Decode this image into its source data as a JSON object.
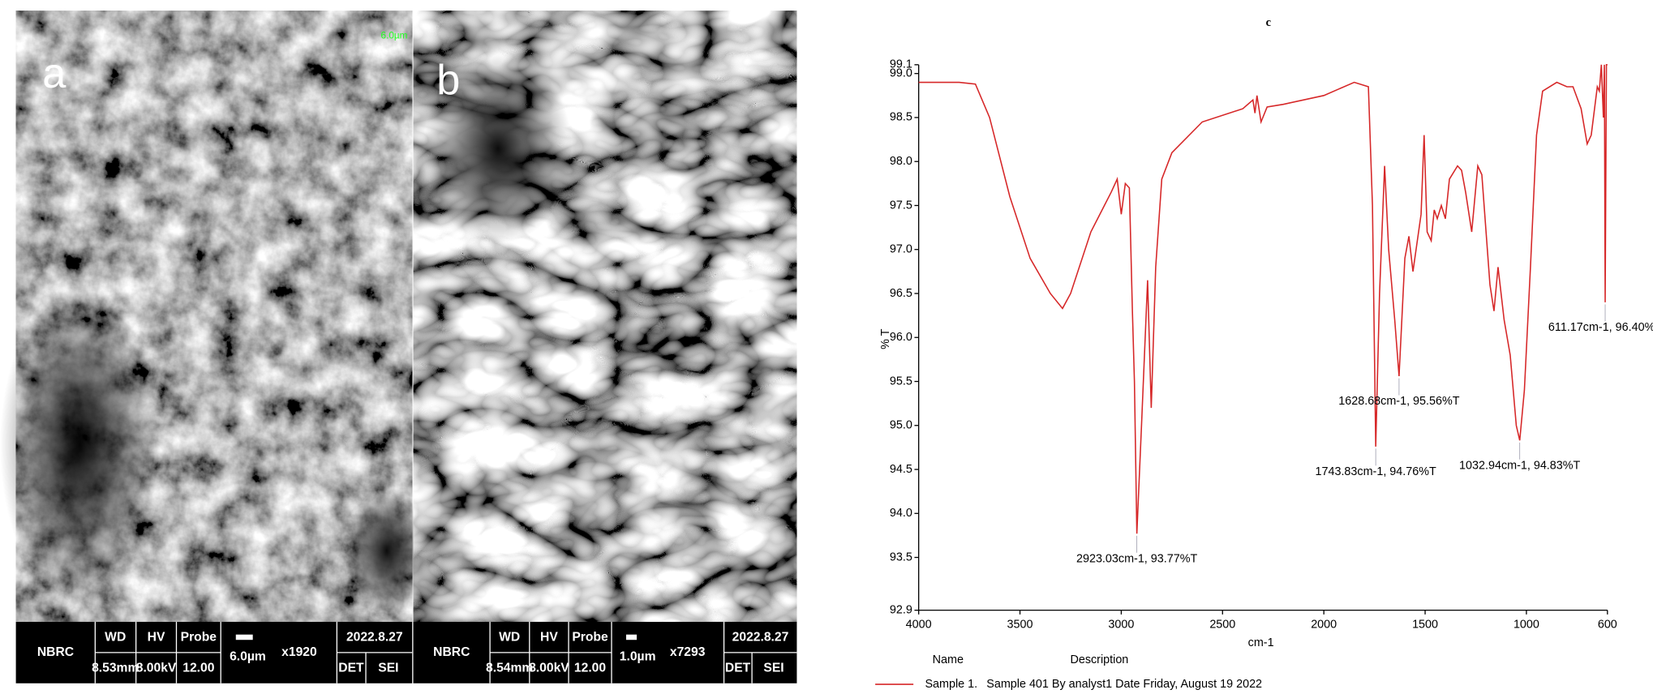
{
  "panels": [
    {
      "label": "a",
      "scale_top": "6.0µm",
      "bar": {
        "org": "NBRC",
        "wd_label": "WD",
        "wd": "8.53mm",
        "hv_label": "HV",
        "hv": "8.00kV",
        "probe_label": "Probe",
        "probe": "12.00",
        "scale": "6.0µm",
        "mag": "x1920",
        "date": "2022.8.27",
        "det": "DET",
        "sei": "SEI"
      }
    },
    {
      "label": "b",
      "bar": {
        "org": "NBRC",
        "wd_label": "WD",
        "wd": "8.54mm",
        "hv_label": "HV",
        "hv": "8.00kV",
        "probe_label": "Probe",
        "probe": "12.00",
        "scale": "1.0µm",
        "mag": "x7293",
        "date": "2022.8.27",
        "det": "DET",
        "sei": "SEI"
      }
    }
  ],
  "chart_data": {
    "type": "line",
    "title": "c",
    "xlabel": "cm-1",
    "ylabel": "% T",
    "xlim": [
      4000,
      600
    ],
    "ylim": [
      92.9,
      99.1
    ],
    "xticks": [
      4000,
      3500,
      3000,
      2500,
      2000,
      1500,
      1000,
      600
    ],
    "yticks": [
      92.9,
      93.5,
      {
        "value": 94,
        "label": "94.0"
      },
      94.5,
      {
        "value": 95,
        "label": "95.0"
      },
      95.5,
      {
        "value": 96,
        "label": "96.0"
      },
      96.5,
      {
        "value": 97,
        "label": "97.0"
      },
      97.5,
      {
        "value": 98,
        "label": "98.0"
      },
      98.5,
      {
        "value": 99,
        "label": "99.0"
      },
      99.1
    ],
    "x": [
      4000,
      3800,
      3720,
      3650,
      3550,
      3450,
      3350,
      3290,
      3250,
      3150,
      3050,
      3020,
      3000,
      2980,
      2960,
      2945,
      2935,
      2923.03,
      2900,
      2870,
      2852,
      2830,
      2800,
      2750,
      2600,
      2400,
      2350,
      2340,
      2330,
      2310,
      2280,
      2200,
      2000,
      1850,
      1780,
      1760,
      1743.83,
      1725,
      1700,
      1680,
      1650,
      1628.68,
      1600,
      1580,
      1560,
      1520,
      1505,
      1490,
      1470,
      1455,
      1440,
      1420,
      1400,
      1380,
      1340,
      1320,
      1300,
      1270,
      1240,
      1220,
      1180,
      1160,
      1140,
      1110,
      1080,
      1050,
      1032.94,
      1010,
      980,
      950,
      920,
      850,
      800,
      770,
      730,
      700,
      680,
      650,
      640,
      630,
      620,
      615,
      611.17,
      605,
      600
    ],
    "series": [
      {
        "name": "Sample 1.",
        "description": "Sample 401 By analyst1 Date Friday, August 19 2022",
        "color": "#d62728",
        "values": [
          98.9,
          98.9,
          98.88,
          98.5,
          97.6,
          96.9,
          96.5,
          96.33,
          96.5,
          97.2,
          97.65,
          97.8,
          97.4,
          97.75,
          97.7,
          96.3,
          95.5,
          93.77,
          95.0,
          96.65,
          95.2,
          96.8,
          97.8,
          98.1,
          98.45,
          98.6,
          98.7,
          98.55,
          98.75,
          98.45,
          98.62,
          98.65,
          98.75,
          98.9,
          98.85,
          97.5,
          94.76,
          96.5,
          97.95,
          97.0,
          96.2,
          95.56,
          96.9,
          97.15,
          96.75,
          97.4,
          98.3,
          97.2,
          97.1,
          97.45,
          97.35,
          97.5,
          97.35,
          97.8,
          97.95,
          97.9,
          97.65,
          97.2,
          97.95,
          97.85,
          96.6,
          96.3,
          96.8,
          96.2,
          95.8,
          95.0,
          94.83,
          95.4,
          96.8,
          98.3,
          98.8,
          98.9,
          98.85,
          98.85,
          98.6,
          98.2,
          98.3,
          98.85,
          98.8,
          99.1,
          98.5,
          99.1,
          96.4,
          99.1,
          99.1
        ]
      }
    ],
    "legend_headers": {
      "name": "Name",
      "description": "Description"
    },
    "annotations": [
      {
        "text": "2923.03cm-1, 93.77%T",
        "x": 2923.03,
        "y": 93.77
      },
      {
        "text": "1743.83cm-1, 94.76%T",
        "x": 1743.83,
        "y": 94.76
      },
      {
        "text": "1628.68cm-1, 95.56%T",
        "x": 1628.68,
        "y": 95.56
      },
      {
        "text": "1032.94cm-1, 94.83%T",
        "x": 1032.94,
        "y": 94.83
      },
      {
        "text": "611.17cm-1, 96.40%T",
        "x": 611.17,
        "y": 96.4
      }
    ]
  }
}
